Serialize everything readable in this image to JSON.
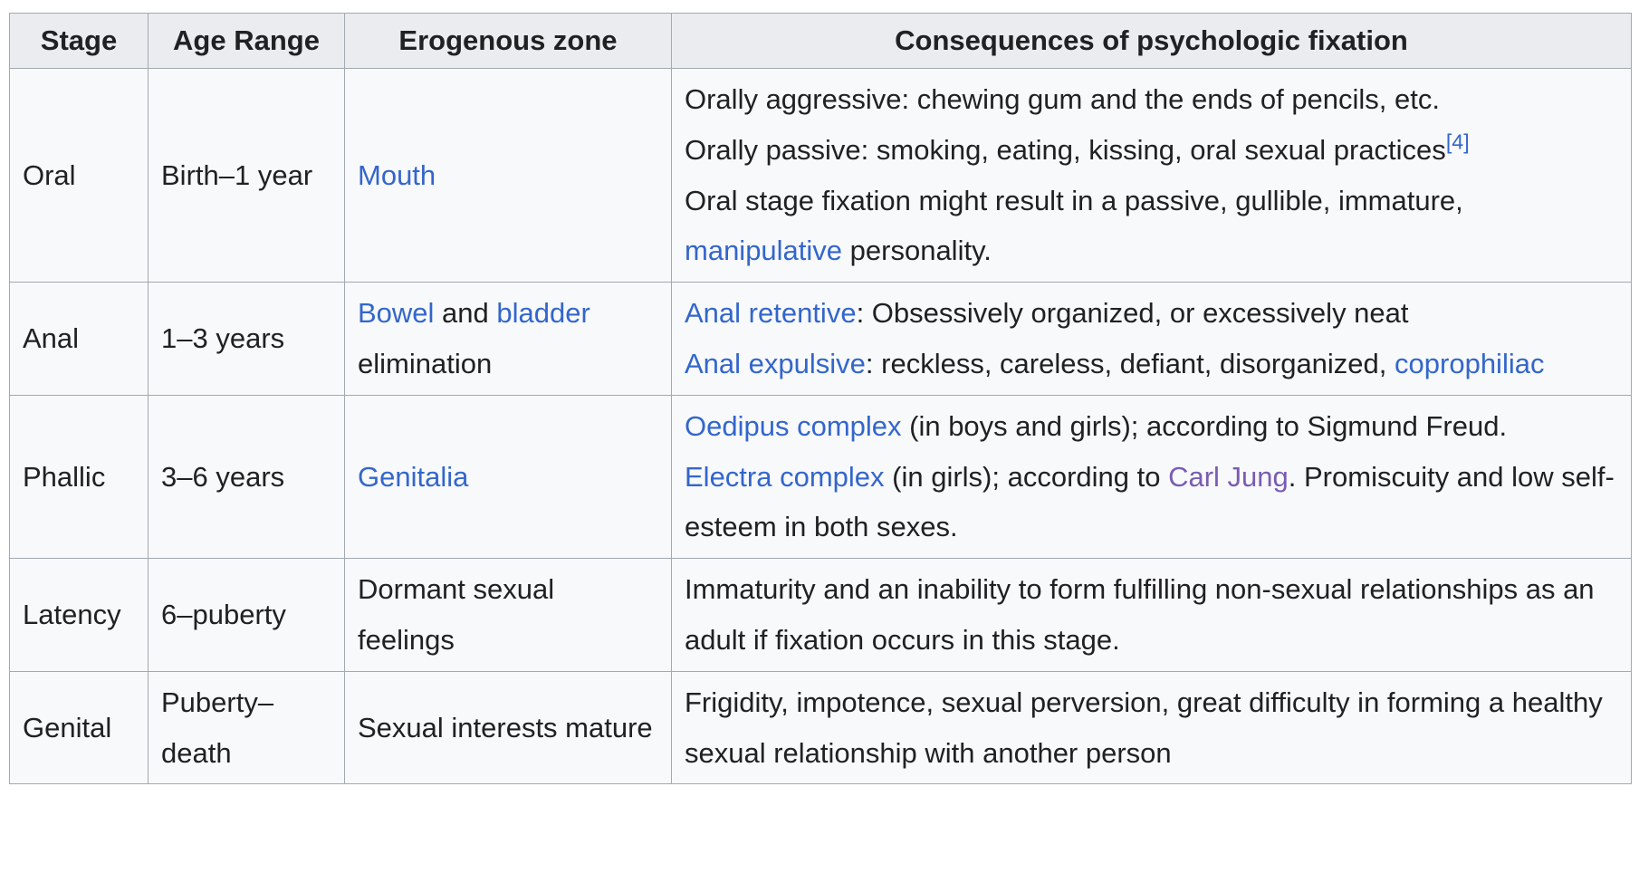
{
  "headers": [
    "Stage",
    "Age Range",
    "Erogenous zone",
    "Consequences of psychologic fixation"
  ],
  "rows": [
    {
      "stage": "Oral",
      "age": "Birth–1 year",
      "zone": {
        "link": "Mouth"
      },
      "consequences": {
        "line1": "Orally aggressive: chewing gum and the ends of pencils, etc.",
        "line2": "Orally passive: smoking, eating, kissing, oral sexual practices",
        "ref": "[4]",
        "line3_text": "Oral stage fixation might result in a passive, gullible, immature, ",
        "line3_link": "manipulative",
        "line3_tail": " personality."
      }
    },
    {
      "stage": "Anal",
      "age": "1–3 years",
      "zone": {
        "link1": "Bowel",
        "mid": " and ",
        "link2": "bladder",
        "tail": " elimination"
      },
      "consequences": {
        "line1_link": "Anal retentive",
        "line1_text": ": Obsessively organized, or excessively neat",
        "line2_link": "Anal expulsive",
        "line2_text": ": reckless, careless, defiant, disorganized, ",
        "line2_link2": "coprophiliac"
      }
    },
    {
      "stage": "Phallic",
      "age": "3–6 years",
      "zone": {
        "link": "Genitalia"
      },
      "consequences": {
        "line1_link": "Oedipus complex",
        "line1_text": " (in boys and girls); according to Sigmund Freud.",
        "line2_link": "Electra complex",
        "line2_text": " (in girls); according to ",
        "line2_link2": "Carl Jung",
        "line2_tail": ". Promiscuity and low self-esteem in both sexes."
      }
    },
    {
      "stage": "Latency",
      "age": "6–puberty",
      "zone": {
        "text": "Dormant sexual feelings"
      },
      "consequences": {
        "text": "Immaturity and an inability to form fulfilling non-sexual relationships as an adult if fixation occurs in this stage."
      }
    },
    {
      "stage": "Genital",
      "age": "Puberty–death",
      "zone": {
        "text": "Sexual interests mature"
      },
      "consequences": {
        "text": "Frigidity, impotence, sexual perversion, great difficulty in forming a healthy sexual relationship with another person"
      }
    }
  ]
}
